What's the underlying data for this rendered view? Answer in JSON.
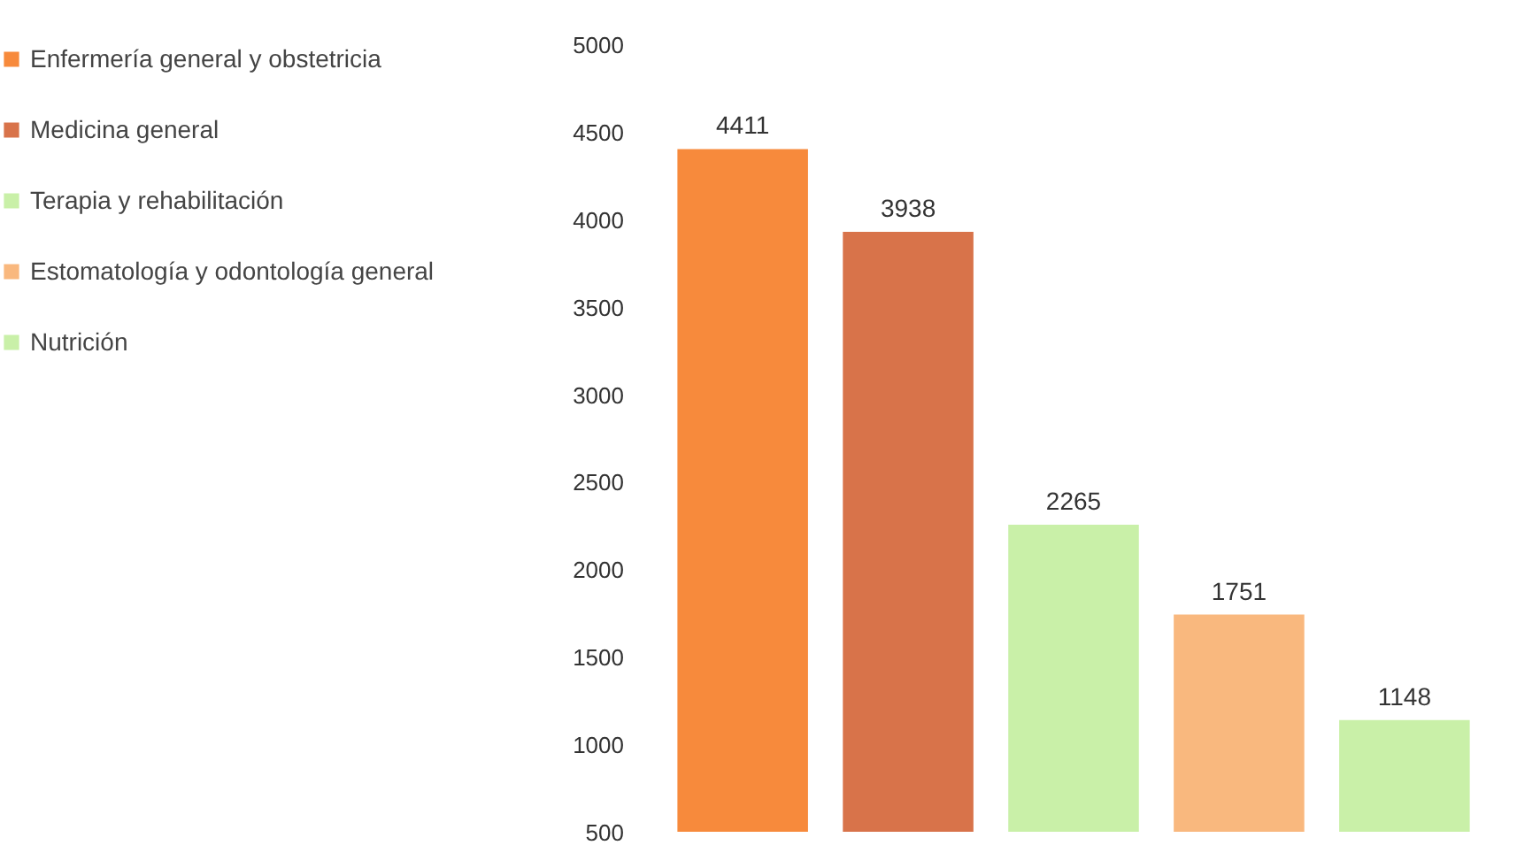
{
  "chart_data": {
    "type": "bar",
    "categories": [
      null
    ],
    "series": [
      {
        "name": "Enfermería general y obstetricia",
        "color": "#f78a3c",
        "values": [
          4411
        ]
      },
      {
        "name": "Medicina general",
        "color": "#d8734a",
        "values": [
          3938
        ]
      },
      {
        "name": "Terapia y rehabilitación",
        "color": "#c9f0a8",
        "values": [
          2265
        ]
      },
      {
        "name": "Estomatología y odontología general",
        "color": "#f9b87e",
        "values": [
          1751
        ]
      },
      {
        "name": "Nutrición",
        "color": "#c9f0a8",
        "values": [
          1148
        ]
      }
    ],
    "ylim": [
      500,
      5000
    ],
    "yticks": [
      500,
      1000,
      1500,
      2000,
      2500,
      3000,
      3500,
      4000,
      4500,
      5000
    ],
    "data_labels": true,
    "grid": false,
    "legend": "left",
    "tick_labels": "y"
  }
}
